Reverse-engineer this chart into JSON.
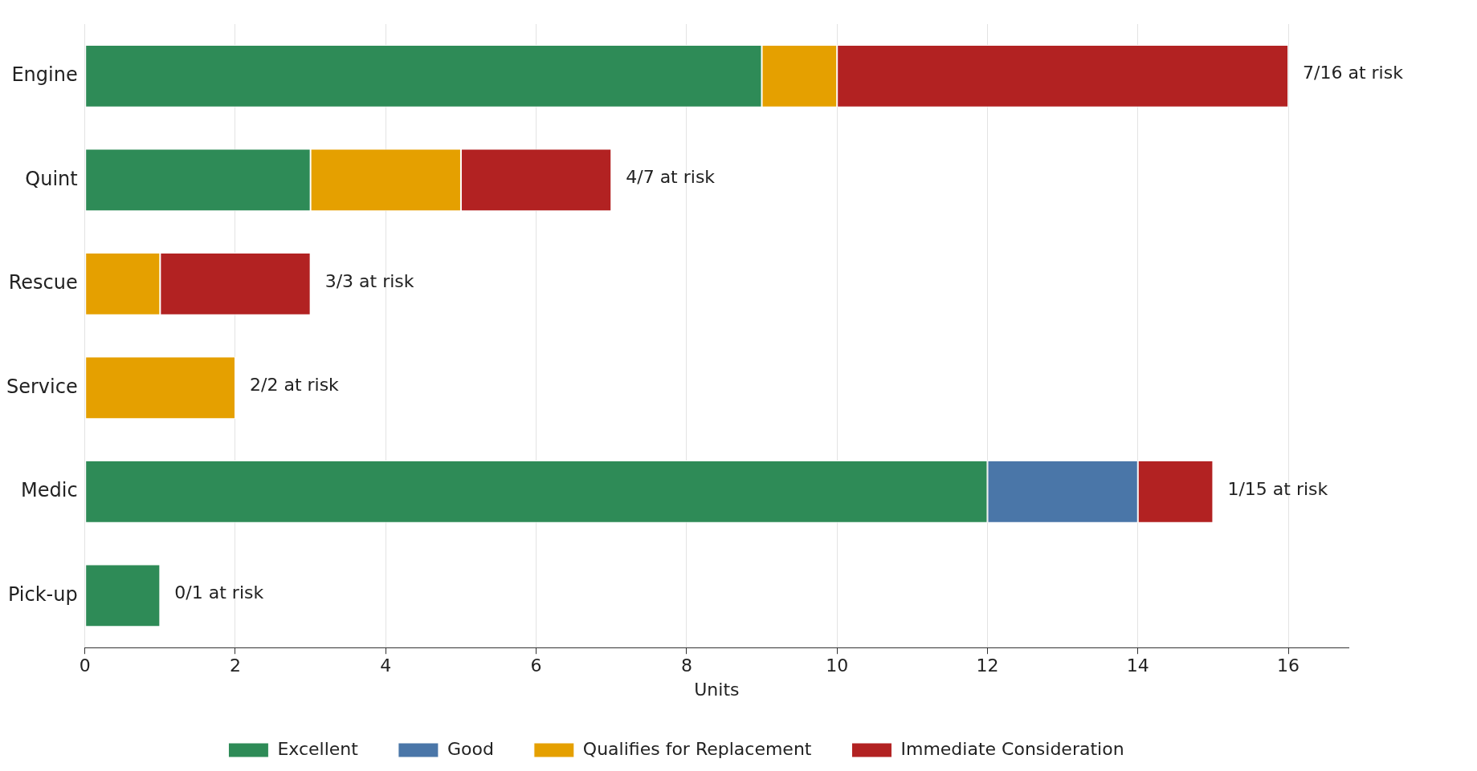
{
  "chart_data": {
    "type": "bar",
    "orientation": "horizontal",
    "stacked": true,
    "categories": [
      "Engine",
      "Quint",
      "Rescue",
      "Service",
      "Medic",
      "Pick-up"
    ],
    "series": [
      {
        "name": "Excellent",
        "color": "#2e8b57",
        "values": [
          9,
          3,
          0,
          0,
          12,
          1
        ]
      },
      {
        "name": "Good",
        "color": "#4a76a8",
        "values": [
          0,
          0,
          0,
          0,
          2,
          0
        ]
      },
      {
        "name": "Qualifies for Replacement",
        "color": "#e5a000",
        "values": [
          1,
          2,
          1,
          2,
          0,
          0
        ]
      },
      {
        "name": "Immediate Consideration",
        "color": "#b22222",
        "values": [
          6,
          2,
          2,
          0,
          1,
          0
        ]
      }
    ],
    "xlabel": "Units",
    "xlim": [
      0,
      16.8
    ],
    "xticks": [
      0,
      2,
      4,
      6,
      8,
      10,
      12,
      14,
      16
    ],
    "grid": "x",
    "legend": "bottom",
    "annotations": [
      {
        "text": "7/16 at risk",
        "x": 16,
        "y": "Engine"
      },
      {
        "text": "4/7 at risk",
        "x": 7,
        "y": "Quint"
      },
      {
        "text": "3/3 at risk",
        "x": 3,
        "y": "Rescue"
      },
      {
        "text": "2/2 at risk",
        "x": 2,
        "y": "Service"
      },
      {
        "text": "1/15 at risk",
        "x": 15,
        "y": "Medic"
      },
      {
        "text": "0/1 at risk",
        "x": 1,
        "y": "Pick-up"
      }
    ]
  }
}
